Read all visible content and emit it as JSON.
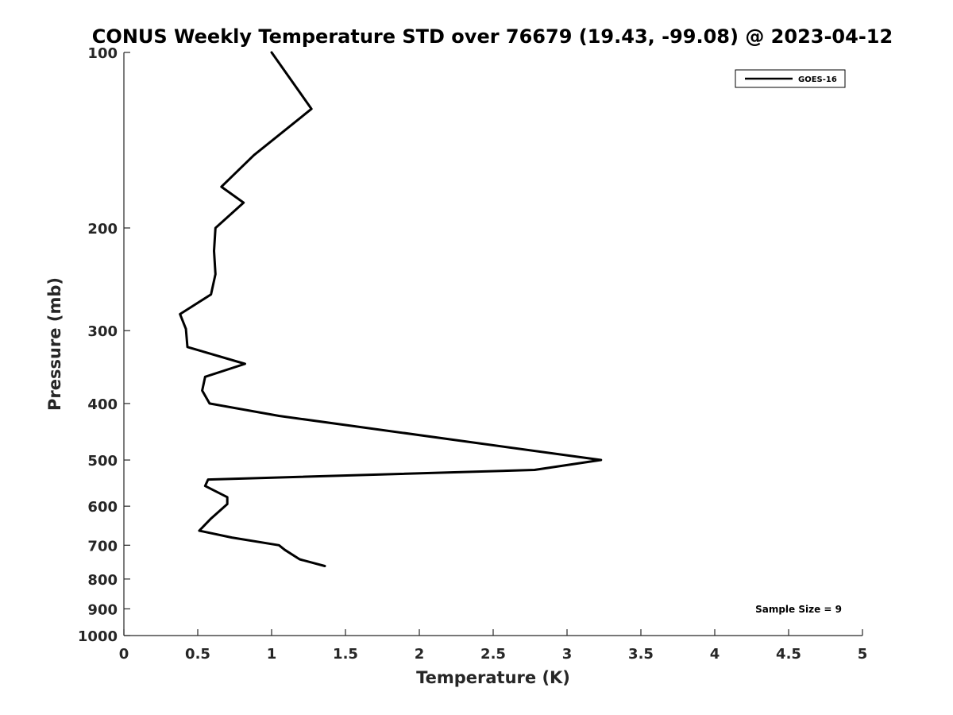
{
  "chart_data": {
    "type": "line",
    "title": "CONUS Weekly Temperature STD over 76679 (19.43, -99.08) @ 2023-04-12",
    "xlabel": "Temperature (K)",
    "ylabel": "Pressure (mb)",
    "xlim": [
      0,
      5
    ],
    "ylim": [
      100,
      1000
    ],
    "y_scale": "log",
    "y_reversed": true,
    "grid": false,
    "legend_position": "top-right",
    "x_ticks": [
      "0",
      "0.5",
      "1",
      "1.5",
      "2",
      "2.5",
      "3",
      "3.5",
      "4",
      "4.5",
      "5"
    ],
    "x_tick_values": [
      0,
      0.5,
      1,
      1.5,
      2,
      2.5,
      3,
      3.5,
      4,
      4.5,
      5
    ],
    "y_ticks": [
      "100",
      "200",
      "300",
      "400",
      "500",
      "600",
      "700",
      "800",
      "900",
      "1000"
    ],
    "y_tick_values": [
      100,
      200,
      300,
      400,
      500,
      600,
      700,
      800,
      900,
      1000
    ],
    "series": [
      {
        "name": "GOES-16",
        "color": "#000000",
        "points": [
          [
            1.0,
            100
          ],
          [
            1.27,
            125
          ],
          [
            0.88,
            150
          ],
          [
            0.66,
            170
          ],
          [
            0.81,
            181
          ],
          [
            0.62,
            200
          ],
          [
            0.61,
            219
          ],
          [
            0.62,
            240
          ],
          [
            0.59,
            260
          ],
          [
            0.38,
            281
          ],
          [
            0.42,
            298
          ],
          [
            0.43,
            320
          ],
          [
            0.82,
            342
          ],
          [
            0.55,
            360
          ],
          [
            0.53,
            380
          ],
          [
            0.58,
            400
          ],
          [
            1.05,
            420
          ],
          [
            3.23,
            500
          ],
          [
            2.78,
            520
          ],
          [
            0.57,
            540
          ],
          [
            0.55,
            554
          ],
          [
            0.7,
            579
          ],
          [
            0.7,
            595
          ],
          [
            0.59,
            630
          ],
          [
            0.51,
            661
          ],
          [
            0.73,
            679
          ],
          [
            1.05,
            700
          ],
          [
            1.09,
            713
          ],
          [
            1.19,
            740
          ],
          [
            1.36,
            760
          ]
        ]
      }
    ],
    "annotations": [
      "Sample Size = 9"
    ]
  }
}
